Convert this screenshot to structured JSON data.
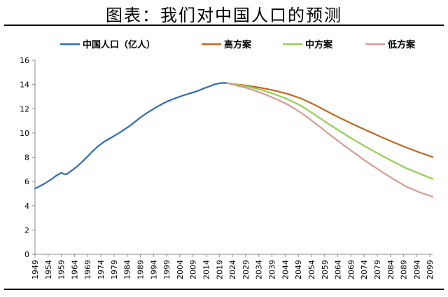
{
  "chart_data": {
    "type": "line",
    "title": "图表：我们对中国人口的预测",
    "xlabel": "",
    "ylabel": "",
    "ylim": [
      0,
      16
    ],
    "xlim": [
      1949,
      2100
    ],
    "y_ticks": [
      "0",
      "2",
      "4",
      "6",
      "8",
      "10",
      "12",
      "14",
      "16"
    ],
    "x_ticks": [
      "1949",
      "1954",
      "1959",
      "1964",
      "1969",
      "1974",
      "1979",
      "1984",
      "1989",
      "1994",
      "1999",
      "2004",
      "2009",
      "2014",
      "2019",
      "2024",
      "2029",
      "2034",
      "2039",
      "2044",
      "2049",
      "2054",
      "2059",
      "2064",
      "2069",
      "2074",
      "2079",
      "2084",
      "2089",
      "2094",
      "2099"
    ],
    "grid": false,
    "legend_position": "top",
    "series": [
      {
        "name": "中国人口（亿人）",
        "color": "#2E6DB4",
        "x": [
          1949,
          1952,
          1955,
          1957,
          1959,
          1960,
          1961,
          1963,
          1965,
          1967,
          1969,
          1971,
          1973,
          1975,
          1977,
          1979,
          1981,
          1983,
          1985,
          1987,
          1989,
          1991,
          1993,
          1995,
          1997,
          1999,
          2001,
          2003,
          2005,
          2007,
          2009,
          2011,
          2013,
          2015,
          2017,
          2019,
          2020,
          2021,
          2022
        ],
        "values": [
          5.42,
          5.75,
          6.15,
          6.47,
          6.72,
          6.62,
          6.59,
          6.92,
          7.25,
          7.64,
          8.07,
          8.52,
          8.92,
          9.24,
          9.5,
          9.75,
          10.01,
          10.3,
          10.59,
          10.93,
          11.27,
          11.58,
          11.85,
          12.11,
          12.36,
          12.58,
          12.76,
          12.92,
          13.08,
          13.21,
          13.35,
          13.48,
          13.67,
          13.83,
          14.0,
          14.1,
          14.12,
          14.13,
          14.12
        ]
      },
      {
        "name": "高方案",
        "color": "#C5651E",
        "x": [
          2022,
          2025,
          2030,
          2035,
          2040,
          2045,
          2050,
          2055,
          2060,
          2065,
          2070,
          2075,
          2080,
          2085,
          2090,
          2095,
          2100
        ],
        "values": [
          14.12,
          14.02,
          13.9,
          13.72,
          13.5,
          13.22,
          12.85,
          12.35,
          11.78,
          11.22,
          10.7,
          10.2,
          9.72,
          9.25,
          8.8,
          8.4,
          8.02
        ]
      },
      {
        "name": "中方案",
        "color": "#92D050",
        "x": [
          2022,
          2025,
          2030,
          2035,
          2040,
          2045,
          2050,
          2055,
          2060,
          2065,
          2070,
          2075,
          2080,
          2085,
          2090,
          2095,
          2100
        ],
        "values": [
          14.12,
          14.0,
          13.82,
          13.55,
          13.2,
          12.78,
          12.25,
          11.55,
          10.82,
          10.12,
          9.45,
          8.82,
          8.22,
          7.65,
          7.1,
          6.65,
          6.22
        ]
      },
      {
        "name": "低方案",
        "color": "#D89A94",
        "x": [
          2022,
          2025,
          2030,
          2035,
          2040,
          2045,
          2050,
          2055,
          2060,
          2065,
          2070,
          2075,
          2080,
          2085,
          2090,
          2095,
          2100
        ],
        "values": [
          14.12,
          13.95,
          13.68,
          13.3,
          12.85,
          12.35,
          11.68,
          10.88,
          10.02,
          9.2,
          8.4,
          7.62,
          6.9,
          6.22,
          5.58,
          5.12,
          4.75
        ]
      }
    ]
  }
}
